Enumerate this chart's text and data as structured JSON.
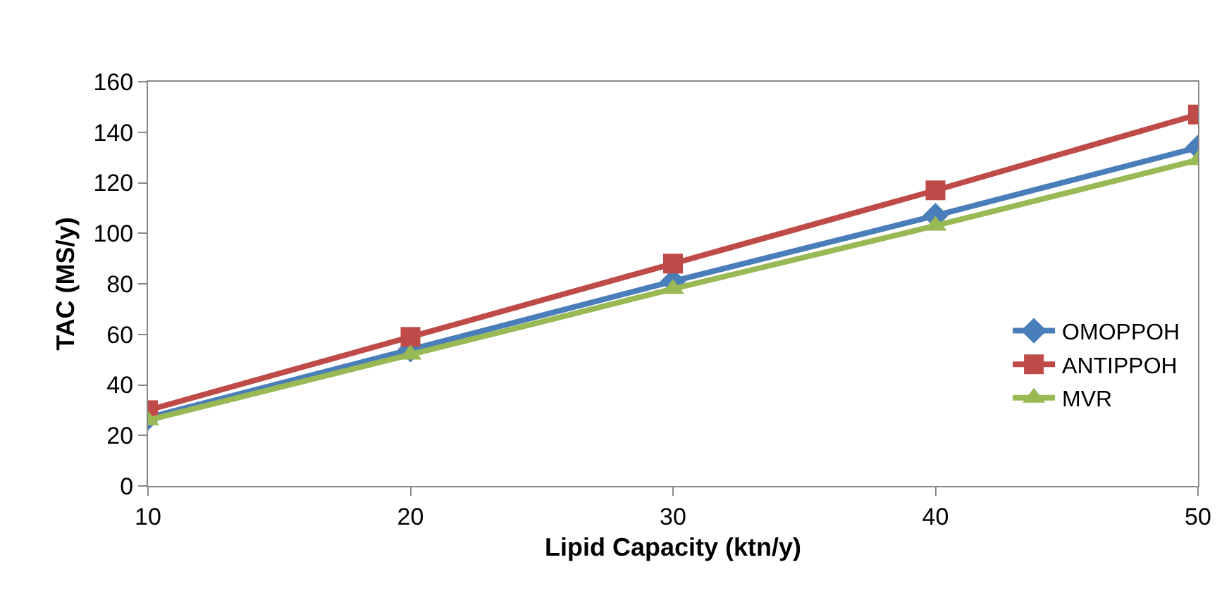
{
  "chart_data": {
    "type": "line",
    "xlabel": "Lipid Capacity (ktn/y)",
    "ylabel": "TAC (MS/y)",
    "x": [
      10,
      20,
      30,
      40,
      50
    ],
    "series": [
      {
        "name": "OMOPPOH",
        "color": "#4a7ebb",
        "marker": "diamond",
        "values": [
          27,
          54,
          81,
          107,
          134
        ]
      },
      {
        "name": "ANTIPPOH",
        "color": "#be4b48",
        "marker": "square",
        "values": [
          30,
          59,
          88,
          117,
          147
        ]
      },
      {
        "name": "MVR",
        "color": "#98b954",
        "marker": "triangle",
        "values": [
          26,
          52,
          78,
          103,
          129
        ]
      }
    ],
    "xlim": [
      10,
      50
    ],
    "xticks": [
      10,
      20,
      30,
      40,
      50
    ],
    "ylim": [
      0,
      160
    ],
    "yticks": [
      0,
      20,
      40,
      60,
      80,
      100,
      120,
      140,
      160
    ],
    "legend": "right",
    "line_style": "solid"
  }
}
